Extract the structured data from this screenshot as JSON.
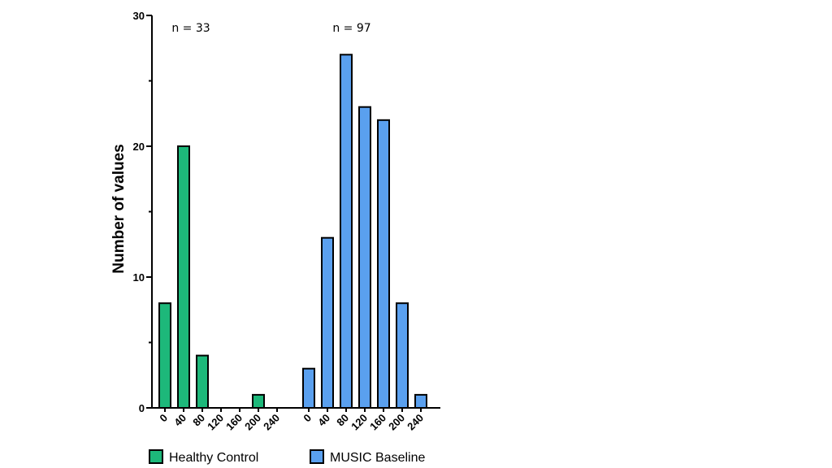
{
  "chart_data": {
    "type": "bar",
    "ylabel": "Number of values",
    "xlabel": "",
    "ylim": [
      0,
      30
    ],
    "y_ticks": [
      "0",
      "10",
      "20",
      "30"
    ],
    "categories": [
      "0",
      "40",
      "80",
      "120",
      "160",
      "200",
      "240"
    ],
    "series": [
      {
        "name": "Healthy Control",
        "values": [
          8,
          20,
          4,
          0,
          0,
          1,
          0
        ],
        "color": "#1db87a",
        "annotation": "n = 33"
      },
      {
        "name": "MUSIC Baseline",
        "values": [
          3,
          13,
          27,
          23,
          22,
          8,
          1
        ],
        "color": "#5aa0ef",
        "annotation": "n = 97"
      }
    ],
    "legend_position": "bottom",
    "grid": false
  }
}
